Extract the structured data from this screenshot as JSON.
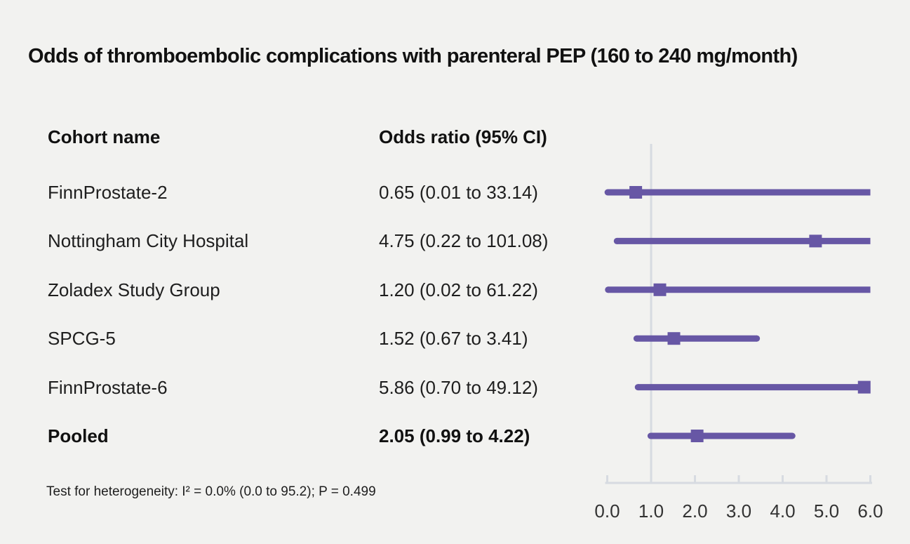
{
  "title": "Odds of thromboembolic complications with parenteral PEP (160 to 240 mg/month)",
  "columns": {
    "cohort": "Cohort name",
    "odds_ratio": "Odds ratio (95% CI)"
  },
  "footer": "Test for heterogeneity: I² = 0.0% (0.0 to 95.2); P = 0.499",
  "colors": {
    "marker_purple": "#6757a5",
    "grid_gray": "#d7dbe1",
    "background": "#f2f2f0",
    "text": "#1e1e1e",
    "tick_text": "#333333"
  },
  "chart_data": {
    "type": "forest",
    "title": "Odds of thromboembolic complications with parenteral PEP (160 to 240 mg/month)",
    "legend_position": "none",
    "grid": "reference-line-only",
    "x_range": [
      0,
      6
    ],
    "x_ticks": [
      "0.0",
      "1.0",
      "2.0",
      "3.0",
      "4.0",
      "5.0",
      "6.0"
    ],
    "x_tick_values": [
      0,
      1,
      2,
      3,
      4,
      5,
      6
    ],
    "reference_line": 1.0,
    "rows": [
      {
        "label": "FinnProstate-2",
        "or_text": "0.65 (0.01 to 33.14)",
        "or": 0.65,
        "lo": 0.01,
        "hi": 33.14,
        "bold": false
      },
      {
        "label": "Nottingham City Hospital",
        "or_text": "4.75 (0.22 to 101.08)",
        "or": 4.75,
        "lo": 0.22,
        "hi": 101.08,
        "bold": false
      },
      {
        "label": "Zoladex Study Group",
        "or_text": "1.20 (0.02 to 61.22)",
        "or": 1.2,
        "lo": 0.02,
        "hi": 61.22,
        "bold": false
      },
      {
        "label": "SPCG-5",
        "or_text": "1.52 (0.67 to 3.41)",
        "or": 1.52,
        "lo": 0.67,
        "hi": 3.41,
        "bold": false
      },
      {
        "label": "FinnProstate-6",
        "or_text": "5.86 (0.70 to 49.12)",
        "or": 5.86,
        "lo": 0.7,
        "hi": 49.12,
        "bold": false
      },
      {
        "label": "Pooled",
        "or_text": "2.05 (0.99 to 4.22)",
        "or": 2.05,
        "lo": 0.99,
        "hi": 4.22,
        "bold": true
      }
    ],
    "heterogeneity": "Test for heterogeneity: I² = 0.0% (0.0 to 95.2); P = 0.499"
  }
}
